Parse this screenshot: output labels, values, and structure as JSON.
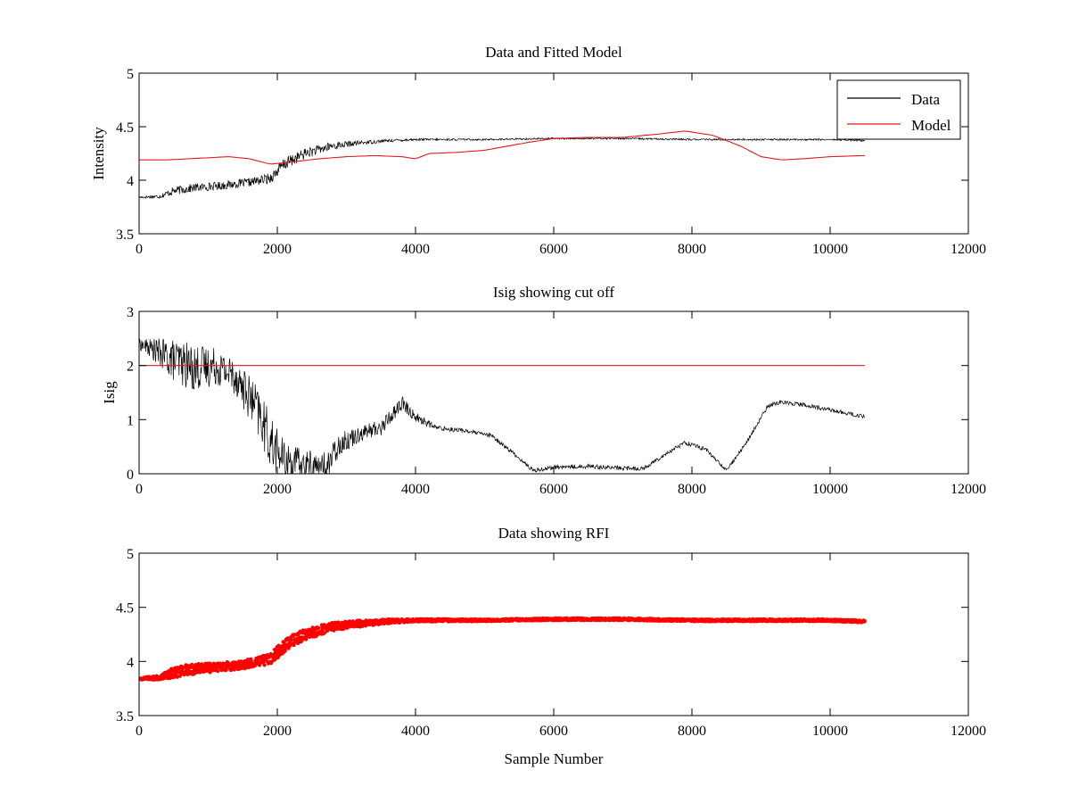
{
  "figure": {
    "background": "#ffffff",
    "axis_color": "#000000"
  },
  "chart_data": [
    {
      "type": "line",
      "title": "Data and Fitted Model",
      "xlabel": "",
      "ylabel": "Intensity",
      "xlim": [
        0,
        12000
      ],
      "ylim": [
        3.5,
        5
      ],
      "xticks": [
        0,
        2000,
        4000,
        6000,
        8000,
        10000,
        12000
      ],
      "yticks": [
        3.5,
        4,
        4.5,
        5
      ],
      "xtick_labels": [
        "0",
        "2000",
        "4000",
        "6000",
        "8000",
        "10000",
        "12000"
      ],
      "ytick_labels": [
        "3.5",
        "4",
        "4.5",
        "5"
      ],
      "legend": {
        "location": "top-right",
        "entries": [
          "Data",
          "Model"
        ]
      },
      "series": [
        {
          "name": "Data",
          "color": "#000000",
          "style": "noisy-line",
          "x": [
            0,
            300,
            500,
            800,
            1200,
            1600,
            1900,
            2100,
            2400,
            2800,
            3200,
            3600,
            4000,
            5000,
            6000,
            7000,
            8000,
            9000,
            10000,
            10500
          ],
          "y": [
            3.84,
            3.85,
            3.9,
            3.93,
            3.95,
            3.98,
            4.02,
            4.15,
            4.25,
            4.32,
            4.35,
            4.37,
            4.38,
            4.38,
            4.39,
            4.39,
            4.38,
            4.38,
            4.38,
            4.37
          ],
          "noise": [
            0.01,
            0.02,
            0.04,
            0.04,
            0.04,
            0.04,
            0.05,
            0.06,
            0.05,
            0.04,
            0.02,
            0.015,
            0.01,
            0.008,
            0.008,
            0.008,
            0.008,
            0.008,
            0.008,
            0.008
          ]
        },
        {
          "name": "Model",
          "color": "#e41a1c",
          "style": "line",
          "x": [
            0,
            400,
            1000,
            1300,
            1600,
            1900,
            2200,
            2600,
            3000,
            3400,
            3800,
            4000,
            4200,
            4600,
            5000,
            5600,
            6000,
            6500,
            7000,
            7500,
            7900,
            8300,
            8700,
            9000,
            9300,
            9600,
            10000,
            10500
          ],
          "y": [
            4.19,
            4.19,
            4.21,
            4.22,
            4.2,
            4.15,
            4.17,
            4.2,
            4.22,
            4.23,
            4.22,
            4.2,
            4.25,
            4.26,
            4.28,
            4.35,
            4.39,
            4.4,
            4.4,
            4.43,
            4.46,
            4.42,
            4.32,
            4.22,
            4.19,
            4.2,
            4.22,
            4.23
          ]
        }
      ]
    },
    {
      "type": "line",
      "title": "Isig showing cut off",
      "xlabel": "",
      "ylabel": "Isig",
      "xlim": [
        0,
        12000
      ],
      "ylim": [
        0,
        3
      ],
      "xticks": [
        0,
        2000,
        4000,
        6000,
        8000,
        10000,
        12000
      ],
      "yticks": [
        0,
        1,
        2,
        3
      ],
      "xtick_labels": [
        "0",
        "2000",
        "4000",
        "6000",
        "8000",
        "10000",
        "12000"
      ],
      "ytick_labels": [
        "0",
        "1",
        "2",
        "3"
      ],
      "series": [
        {
          "name": "Isig",
          "color": "#000000",
          "style": "noisy-line",
          "x": [
            0,
            200,
            500,
            800,
            1100,
            1400,
            1700,
            1900,
            2100,
            2400,
            2700,
            2900,
            3200,
            3500,
            3800,
            4000,
            4300,
            4700,
            5100,
            5400,
            5700,
            6000,
            6500,
            7000,
            7300,
            7600,
            7900,
            8200,
            8500,
            8800,
            9100,
            9300,
            9600,
            10000,
            10500
          ],
          "y": [
            2.4,
            2.3,
            2.1,
            1.95,
            2.0,
            1.8,
            1.2,
            0.6,
            0.25,
            0.15,
            0.1,
            0.55,
            0.75,
            0.85,
            1.3,
            1.05,
            0.85,
            0.8,
            0.7,
            0.4,
            0.06,
            0.12,
            0.14,
            0.1,
            0.1,
            0.35,
            0.58,
            0.45,
            0.06,
            0.6,
            1.25,
            1.33,
            1.28,
            1.18,
            1.05
          ],
          "noise": [
            0.1,
            0.2,
            0.4,
            0.45,
            0.35,
            0.35,
            0.45,
            0.5,
            0.35,
            0.3,
            0.3,
            0.2,
            0.15,
            0.15,
            0.15,
            0.1,
            0.05,
            0.04,
            0.04,
            0.04,
            0.04,
            0.04,
            0.04,
            0.04,
            0.04,
            0.04,
            0.04,
            0.04,
            0.04,
            0.04,
            0.04,
            0.04,
            0.04,
            0.04,
            0.04
          ]
        },
        {
          "name": "cut off",
          "color": "#e41a1c",
          "style": "line",
          "x": [
            0,
            10500
          ],
          "y": [
            2,
            2
          ]
        }
      ]
    },
    {
      "type": "scatter",
      "title": "Data showing RFI",
      "xlabel": "Sample Number",
      "ylabel": "",
      "xlim": [
        0,
        12000
      ],
      "ylim": [
        3.5,
        5
      ],
      "xticks": [
        0,
        2000,
        4000,
        6000,
        8000,
        10000,
        12000
      ],
      "yticks": [
        3.5,
        4,
        4.5,
        5
      ],
      "xtick_labels": [
        "0",
        "2000",
        "4000",
        "6000",
        "8000",
        "10000",
        "12000"
      ],
      "ytick_labels": [
        "3.5",
        "4",
        "4.5",
        "5"
      ],
      "series": [
        {
          "name": "RFI",
          "color": "#ff0000",
          "style": "dense-markers",
          "x": [
            0,
            300,
            500,
            800,
            1200,
            1600,
            1900,
            2100,
            2400,
            2800,
            3200,
            3600,
            4000,
            5000,
            6000,
            7000,
            8000,
            9000,
            10000,
            10500
          ],
          "y": [
            3.84,
            3.85,
            3.9,
            3.93,
            3.95,
            3.98,
            4.02,
            4.15,
            4.25,
            4.32,
            4.35,
            4.37,
            4.38,
            4.38,
            4.39,
            4.39,
            4.38,
            4.38,
            4.38,
            4.37
          ],
          "noise": [
            0.01,
            0.02,
            0.05,
            0.05,
            0.04,
            0.04,
            0.05,
            0.06,
            0.05,
            0.04,
            0.03,
            0.02,
            0.012,
            0.01,
            0.01,
            0.01,
            0.01,
            0.01,
            0.01,
            0.01
          ]
        }
      ]
    }
  ]
}
